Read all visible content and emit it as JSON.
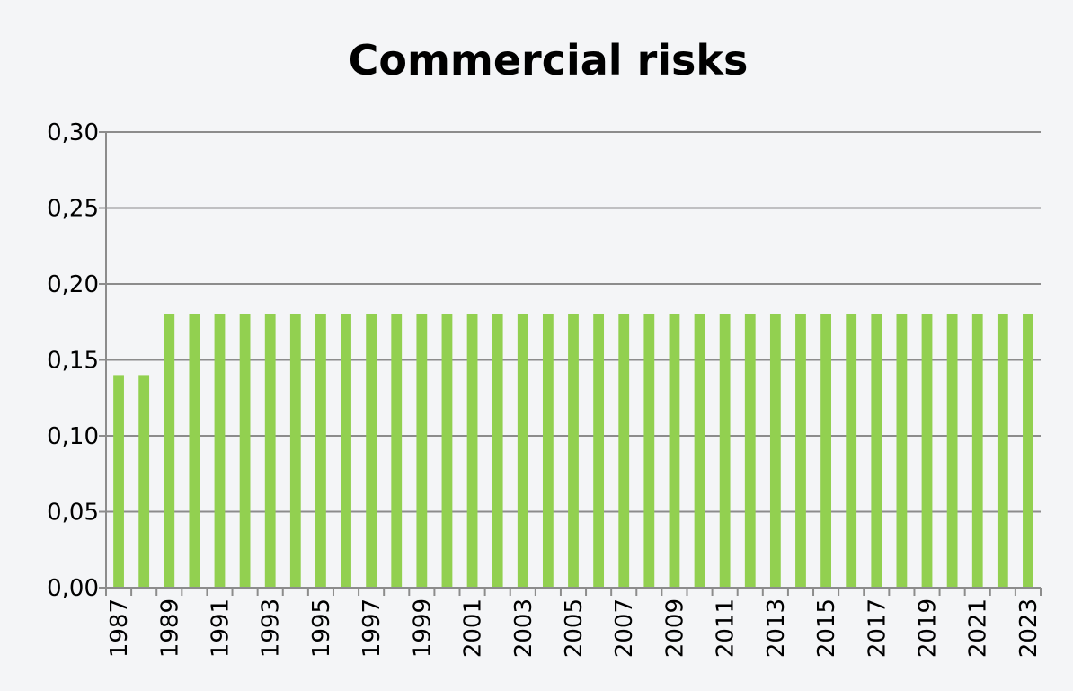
{
  "chart_data": {
    "type": "bar",
    "title": "Commercial risks",
    "xlabel": "",
    "ylabel": "",
    "ylim": [
      0,
      0.3
    ],
    "yticks": [
      "0,00",
      "0,05",
      "0,10",
      "0,15",
      "0,20",
      "0,25",
      "0,30"
    ],
    "categories": [
      "1987",
      "1988",
      "1989",
      "1990",
      "1991",
      "1992",
      "1993",
      "1994",
      "1995",
      "1996",
      "1997",
      "1998",
      "1999",
      "2000",
      "2001",
      "2002",
      "2003",
      "2004",
      "2005",
      "2006",
      "2007",
      "2008",
      "2009",
      "2010",
      "2011",
      "2012",
      "2013",
      "2014",
      "2015",
      "2016",
      "2017",
      "2018",
      "2019",
      "2020",
      "2021",
      "2022",
      "2023"
    ],
    "xtick_labels": [
      "1987",
      "",
      "1989",
      "",
      "1991",
      "",
      "1993",
      "",
      "1995",
      "",
      "1997",
      "",
      "1999",
      "",
      "2001",
      "",
      "2003",
      "",
      "2005",
      "",
      "2007",
      "",
      "2009",
      "",
      "2011",
      "",
      "2013",
      "",
      "2015",
      "",
      "2017",
      "",
      "2019",
      "",
      "2021",
      "",
      "2023"
    ],
    "values": [
      0.14,
      0.14,
      0.18,
      0.18,
      0.18,
      0.18,
      0.18,
      0.18,
      0.18,
      0.18,
      0.18,
      0.18,
      0.18,
      0.18,
      0.18,
      0.18,
      0.18,
      0.18,
      0.18,
      0.18,
      0.18,
      0.18,
      0.18,
      0.18,
      0.18,
      0.18,
      0.18,
      0.18,
      0.18,
      0.18,
      0.18,
      0.18,
      0.18,
      0.18,
      0.18,
      0.18,
      0.18
    ],
    "bar_color": "#92d050",
    "grid": true,
    "grid_color": "#8c8c8c"
  }
}
